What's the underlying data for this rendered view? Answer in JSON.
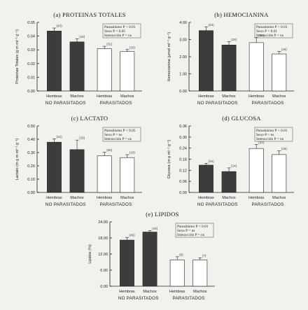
{
  "chart_data": [
    {
      "id": "proteinas",
      "type": "bar",
      "title": "(a) PROTEINAS TOTALES",
      "ylabel": "Proteinas Totales (g m ml⁻¹ g⁻¹)",
      "ylim": [
        0,
        0.05
      ],
      "yticks": [
        "0.00",
        "0.01",
        "0.02",
        "0.03",
        "0.04",
        "0.05"
      ],
      "categories": [
        "Hembras",
        "Machos",
        "Hembras",
        "Machos"
      ],
      "groups": [
        "NO PARASITADOS",
        "PARASITADOS"
      ],
      "values": [
        0.0437,
        0.0358,
        0.0308,
        0.0287
      ],
      "errors": [
        0.0022,
        0.0022,
        0.0018,
        0.0015
      ],
      "n": [
        "(43)",
        "(18)",
        "(32)",
        "(18)"
      ],
      "fills": [
        "#3c3c3c",
        "#3c3c3c",
        "#ffffff",
        "#ffffff"
      ],
      "legend": [
        "Parasitismo   P < 0.01",
        "Sexo              P < 0.05",
        "Interacción      P = ns"
      ]
    },
    {
      "id": "hemocianina",
      "type": "bar",
      "title": "(b)  HEMOCIANINA",
      "ylabel": "Hemocianina (μmol ml⁻¹ g⁻¹)",
      "ylim": [
        0,
        4
      ],
      "yticks": [
        "0.00",
        "1.00",
        "2.00",
        "3.00",
        "4.00"
      ],
      "categories": [
        "Hembras",
        "Machos",
        "Hembras",
        "Machos"
      ],
      "groups": [
        "NO PARASITADOS",
        "PARASITADOS"
      ],
      "values": [
        3.52,
        2.68,
        2.82,
        2.16
      ],
      "errors": [
        0.22,
        0.2,
        0.3,
        0.15
      ],
      "n": [
        "(43)",
        "(18)",
        "(32)",
        "(18)"
      ],
      "fills": [
        "#3c3c3c",
        "#3c3c3c",
        "#ffffff",
        "#ffffff"
      ],
      "legend": [
        "Parasitismo   P < 0.01",
        "Sexo              P < 0.01",
        "Interacción      P = ns"
      ]
    },
    {
      "id": "lactato",
      "type": "bar",
      "title": "(c) LACTATO",
      "ylabel": "Lactato (m g m ml⁻¹ g⁻¹)",
      "ylim": [
        0,
        0.5
      ],
      "yticks": [
        "0.00",
        "0.10",
        "0.20",
        "0.30",
        "0.40",
        "0.50"
      ],
      "categories": [
        "Hembras",
        "Machos",
        "Hembras",
        "Machos"
      ],
      "groups": [
        "NO PARASITADOS",
        "PARASITADOS"
      ],
      "values": [
        0.378,
        0.322,
        0.275,
        0.262
      ],
      "errors": [
        0.025,
        0.072,
        0.028,
        0.022
      ],
      "n": [
        "(22)",
        "(15)",
        "(30)",
        "(16)"
      ],
      "fills": [
        "#3c3c3c",
        "#3c3c3c",
        "#ffffff",
        "#ffffff"
      ],
      "legend": [
        "Parasitismo   P < 0.05",
        "Sexo              P = ns",
        "Interacción      P = ns"
      ]
    },
    {
      "id": "glucosa",
      "type": "bar",
      "title": "(d)  GLUCOSA",
      "ylabel": "Glucosa (m g ml⁻¹ g⁻¹)",
      "ylim": [
        0,
        0.36
      ],
      "yticks": [
        "0.00",
        "0.06",
        "0.12",
        "0.18",
        "0.24",
        "0.30",
        "0.36"
      ],
      "categories": [
        "Hembras",
        "Machos",
        "Hembras",
        "Machos"
      ],
      "groups": [
        "NO PARASITADOS",
        "PARASITADOS"
      ],
      "values": [
        0.148,
        0.113,
        0.238,
        0.205
      ],
      "errors": [
        0.01,
        0.02,
        0.022,
        0.02
      ],
      "n": [
        "(34)",
        "(14)",
        "(22)",
        "(18)"
      ],
      "fills": [
        "#3c3c3c",
        "#3c3c3c",
        "#ffffff",
        "#ffffff"
      ],
      "legend": [
        "Parasitismo   P < 0.01",
        "Sexo              P = ns",
        "Interacción      P = ns"
      ]
    },
    {
      "id": "lipidos",
      "type": "bar",
      "title": "(e) LIPIDOS",
      "ylabel": "Lipidos (%)",
      "ylim": [
        0,
        24
      ],
      "yticks": [
        "0.00",
        "6.00",
        "12.00",
        "18.00",
        "24.00"
      ],
      "categories": [
        "Hembras",
        "Machos",
        "Hembras",
        "Machos"
      ],
      "groups": [
        "NO PARASITADOS",
        "PARASITADOS"
      ],
      "values": [
        17.2,
        20.2,
        9.8,
        9.8
      ],
      "errors": [
        1.0,
        0.5,
        1.2,
        0.8
      ],
      "n": [
        "(49)",
        "(18)",
        "(6)",
        "(7)"
      ],
      "fills": [
        "#3c3c3c",
        "#3c3c3c",
        "#ffffff",
        "#ffffff"
      ],
      "legend": [
        "Parasitismo   P < 0.01",
        "Sexo              P = ns",
        "Interacción      P = ns"
      ]
    }
  ]
}
